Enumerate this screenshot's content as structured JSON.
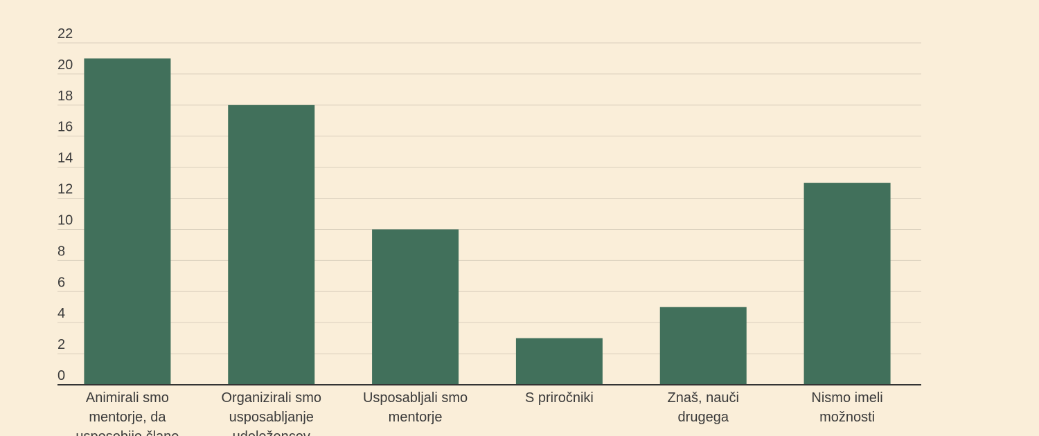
{
  "chart_data": {
    "type": "bar",
    "categories": [
      [
        "Animirali smo",
        "mentorje, da",
        "usposobijo člane"
      ],
      [
        "Organizirali smo",
        "usposabljanje",
        "udeležencev"
      ],
      [
        "Usposabljali smo",
        "mentorje"
      ],
      [
        "S priročniki"
      ],
      [
        "Znaš, nauči",
        "drugega"
      ],
      [
        "Nismo imeli",
        "možnosti"
      ]
    ],
    "values": [
      21,
      18,
      10,
      3,
      5,
      13
    ],
    "ylim": [
      0,
      22
    ],
    "yticks": [
      0,
      2,
      4,
      6,
      8,
      10,
      12,
      14,
      16,
      18,
      20,
      22
    ],
    "grid": true,
    "bar_color": "#41705b",
    "background": "#faeed9"
  }
}
